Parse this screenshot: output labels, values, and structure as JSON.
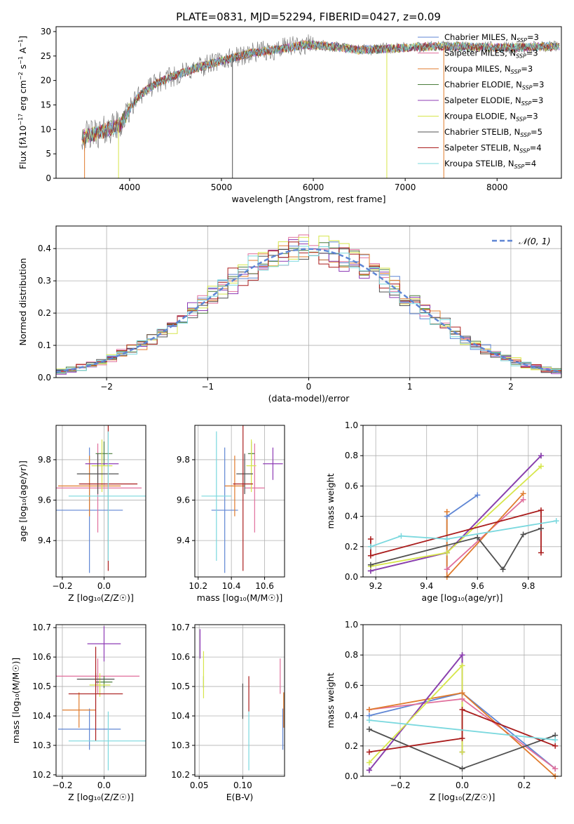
{
  "figure": {
    "title": "PLATE=0831, MJD=52294, FIBERID=0427, z=0.09"
  },
  "colors": {
    "Chabrier MILES": "#5f86d4",
    "Salpeter MILES": "#e06f9c",
    "Kroupa MILES": "#e07b2c",
    "Chabrier ELODIE": "#4a7d3c",
    "Salpeter ELODIE": "#8e3bb5",
    "Kroupa ELODIE": "#d6e64a",
    "Chabrier STELIB": "#505050",
    "Salpeter STELIB": "#aa1c1c",
    "Kroupa STELIB": "#7ad8de"
  },
  "chart_data": [
    {
      "id": "spectrum",
      "type": "line",
      "title": "PLATE=0831, MJD=52294, FIBERID=0427, z=0.09",
      "xlabel": "wavelength [Angstrom, rest frame]",
      "ylabel_html": "Flux [f<tspan font-style='italic'>λ</tspan>10<tspan dy='-5' font-size='8'>−17</tspan><tspan dy='5'> erg cm</tspan><tspan dy='-5' font-size='8'>−2</tspan><tspan dy='5'> s</tspan><tspan dy='-5' font-size='8'>−1</tspan><tspan dy='5'> A</tspan><tspan dy='-5' font-size='8'>−1</tspan><tspan dy='5'>]</tspan>",
      "xlim": [
        3200,
        8700
      ],
      "ylim": [
        0,
        31
      ],
      "xticks": [
        4000,
        5000,
        6000,
        7000,
        8000
      ],
      "yticks": [
        0,
        5,
        10,
        15,
        20,
        25,
        30
      ],
      "legend_placement": "right",
      "legend": [
        {
          "model": "Chabrier MILES",
          "label": "Chabrier MILES, N",
          "sub": "SSP",
          "n": "=3"
        },
        {
          "model": "Salpeter MILES",
          "label": "Salpeter MILES, N",
          "sub": "SSP",
          "n": "=3"
        },
        {
          "model": "Kroupa MILES",
          "label": "Kroupa MILES, N",
          "sub": "SSP",
          "n": "=3"
        },
        {
          "model": "Chabrier ELODIE",
          "label": "Chabrier ELODIE, N",
          "sub": "SSP",
          "n": "=3"
        },
        {
          "model": "Salpeter ELODIE",
          "label": "Salpeter ELODIE, N",
          "sub": "SSP",
          "n": "=3"
        },
        {
          "model": "Kroupa ELODIE",
          "label": "Kroupa ELODIE, N",
          "sub": "SSP",
          "n": "=3"
        },
        {
          "model": "Chabrier STELIB",
          "label": "Chabrier STELIB, N",
          "sub": "SSP",
          "n": "=5"
        },
        {
          "model": "Salpeter STELIB",
          "label": "Salpeter STELIB, N",
          "sub": "SSP",
          "n": "=4"
        },
        {
          "model": "Kroupa STELIB",
          "label": "Kroupa STELIB, N",
          "sub": "SSP",
          "n": "=4"
        }
      ],
      "continuum": {
        "x": [
          3500,
          3700,
          3900,
          4000,
          4100,
          4300,
          4500,
          4800,
          5000,
          5300,
          5600,
          5900,
          6200,
          6500,
          6800,
          7100,
          7400,
          7800,
          8200,
          8600
        ],
        "y": [
          8.5,
          9.5,
          11.0,
          14.0,
          17.0,
          19.5,
          21.0,
          23.0,
          24.0,
          25.5,
          26.3,
          27.3,
          27.0,
          26.2,
          26.5,
          26.8,
          27.0,
          26.8,
          26.7,
          27.0
        ]
      },
      "spikes": [
        {
          "x": 3510,
          "y": 0,
          "model": "Kroupa MILES"
        },
        {
          "x": 3880,
          "y": 0,
          "model": "Kroupa ELODIE"
        },
        {
          "x": 5120,
          "y": 0,
          "model": "Chabrier STELIB"
        },
        {
          "x": 6800,
          "y": 0,
          "model": "Kroupa ELODIE"
        },
        {
          "x": 7420,
          "y": 0,
          "model": "Kroupa MILES"
        }
      ]
    },
    {
      "id": "residuals",
      "type": "histogram",
      "xlabel": "(data-model)/error",
      "ylabel": "Normed distribution",
      "xlim": [
        -2.5,
        2.5
      ],
      "ylim": [
        0,
        0.47
      ],
      "xticks": [
        -2,
        -1,
        0,
        1,
        2
      ],
      "yticks": [
        0.0,
        0.1,
        0.2,
        0.3,
        0.4
      ],
      "legend_placement": "top-right",
      "legend_label": "𝒩(0, 1)",
      "legend_color": "#5f86d4",
      "bin_width": 0.1,
      "gaussian": {
        "mu": 0,
        "sigma": 1
      }
    },
    {
      "id": "age-vs-Z",
      "type": "errorbar",
      "xlabel": "Z [log₁₀(Z/Z☉)]",
      "ylabel": "age  [log₁₀(age/yr)]",
      "xlim": [
        -0.23,
        0.2
      ],
      "ylim": [
        9.22,
        9.97
      ],
      "xticks": [
        -0.2,
        0.0
      ],
      "yticks": [
        9.4,
        9.6,
        9.8
      ],
      "points": [
        {
          "model": "Chabrier MILES",
          "x": -0.07,
          "xerr": 0.16,
          "y": 9.55,
          "yerr": 0.31
        },
        {
          "model": "Salpeter MILES",
          "x": -0.03,
          "xerr": 0.21,
          "y": 9.66,
          "yerr": 0.22
        },
        {
          "model": "Kroupa MILES",
          "x": -0.07,
          "xerr": 0.15,
          "y": 9.67,
          "yerr": 0.15
        },
        {
          "model": "Chabrier ELODIE",
          "x": 0.0,
          "xerr": 0.04,
          "y": 9.83,
          "yerr": 0.06
        },
        {
          "model": "Salpeter ELODIE",
          "x": -0.01,
          "xerr": 0.08,
          "y": 9.78,
          "yerr": 0.06
        },
        {
          "model": "Kroupa ELODIE",
          "x": -0.01,
          "xerr": 0.05,
          "y": 9.77,
          "yerr": 0.13
        },
        {
          "model": "Chabrier STELIB",
          "x": -0.03,
          "xerr": 0.1,
          "y": 9.73,
          "yerr": 0.1
        },
        {
          "model": "Salpeter STELIB",
          "x": 0.02,
          "xerr": 0.14,
          "y": 9.68,
          "yerr": 0.43
        },
        {
          "model": "Kroupa STELIB",
          "x": 0.02,
          "xerr": 0.19,
          "y": 9.62,
          "yerr": 0.32
        }
      ]
    },
    {
      "id": "age-vs-mass",
      "type": "errorbar",
      "xlabel": "mass [log₁₀(M/M☉)]",
      "ylabel": "",
      "xlim": [
        10.18,
        10.72
      ],
      "ylim": [
        9.22,
        9.97
      ],
      "xticks": [
        10.2,
        10.4,
        10.6
      ],
      "yticks": [
        9.4,
        9.6,
        9.8
      ],
      "points": [
        {
          "model": "Chabrier MILES",
          "x": 10.36,
          "xerr": 0.08,
          "y": 9.55,
          "yerr": 0.31
        },
        {
          "model": "Salpeter MILES",
          "x": 10.54,
          "xerr": 0.06,
          "y": 9.66,
          "yerr": 0.22
        },
        {
          "model": "Kroupa MILES",
          "x": 10.42,
          "xerr": 0.06,
          "y": 9.67,
          "yerr": 0.15
        },
        {
          "model": "Chabrier ELODIE",
          "x": 10.52,
          "xerr": 0.02,
          "y": 9.83,
          "yerr": 0.06
        },
        {
          "model": "Salpeter ELODIE",
          "x": 10.65,
          "xerr": 0.06,
          "y": 9.78,
          "yerr": 0.08
        },
        {
          "model": "Kroupa ELODIE",
          "x": 10.52,
          "xerr": 0.03,
          "y": 9.77,
          "yerr": 0.13
        },
        {
          "model": "Chabrier STELIB",
          "x": 10.48,
          "xerr": 0.05,
          "y": 9.73,
          "yerr": 0.1
        },
        {
          "model": "Salpeter STELIB",
          "x": 10.47,
          "xerr": 0.06,
          "y": 9.68,
          "yerr": 0.43
        },
        {
          "model": "Kroupa STELIB",
          "x": 10.31,
          "xerr": 0.09,
          "y": 9.62,
          "yerr": 0.32
        }
      ]
    },
    {
      "id": "weight-vs-age",
      "type": "line",
      "xlabel": "age  [log₁₀(age/yr)]",
      "ylabel": "mass weight",
      "xlim": [
        9.15,
        9.93
      ],
      "ylim": [
        0,
        1
      ],
      "xticks": [
        9.2,
        9.4,
        9.6,
        9.8
      ],
      "yticks": [
        0.0,
        0.2,
        0.4,
        0.6,
        0.8,
        1.0
      ],
      "series": [
        {
          "model": "Chabrier MILES",
          "x": [
            9.48,
            9.48,
            9.6
          ],
          "y": [
            0.05,
            0.4,
            0.54
          ]
        },
        {
          "model": "Salpeter MILES",
          "x": [
            9.48,
            9.78
          ],
          "y": [
            0.05,
            0.51
          ]
        },
        {
          "model": "Kroupa MILES",
          "x": [
            9.48,
            9.48,
            9.78
          ],
          "y": [
            0.43,
            0.0,
            0.55
          ]
        },
        {
          "model": "Chabrier ELODIE",
          "x": [
            9.18,
            9.48,
            9.85
          ],
          "y": [
            0.04,
            0.16,
            0.8
          ]
        },
        {
          "model": "Salpeter ELODIE",
          "x": [
            9.18,
            9.48,
            9.85
          ],
          "y": [
            0.04,
            0.16,
            0.8
          ]
        },
        {
          "model": "Kroupa ELODIE",
          "x": [
            9.18,
            9.48,
            9.85
          ],
          "y": [
            0.07,
            0.16,
            0.73
          ]
        },
        {
          "model": "Chabrier STELIB",
          "x": [
            9.18,
            9.6,
            9.7,
            9.78,
            9.85
          ],
          "y": [
            0.08,
            0.26,
            0.05,
            0.28,
            0.32
          ]
        },
        {
          "model": "Salpeter STELIB",
          "x": [
            9.18,
            9.18,
            9.85,
            9.85
          ],
          "y": [
            0.25,
            0.14,
            0.44,
            0.16
          ]
        },
        {
          "model": "Kroupa STELIB",
          "x": [
            9.18,
            9.3,
            9.48,
            9.91
          ],
          "y": [
            0.2,
            0.27,
            0.25,
            0.37
          ]
        }
      ]
    },
    {
      "id": "mass-vs-Z",
      "type": "errorbar",
      "xlabel": "Z [log₁₀(Z/Z☉)]",
      "ylabel": "mass [log₁₀(M/M☉)]",
      "xlim": [
        -0.23,
        0.2
      ],
      "ylim": [
        10.195,
        10.71
      ],
      "xticks": [
        -0.2,
        0.0
      ],
      "yticks": [
        10.2,
        10.3,
        10.4,
        10.5,
        10.6,
        10.7
      ],
      "points": [
        {
          "model": "Chabrier MILES",
          "x": -0.07,
          "xerr": 0.15,
          "y": 10.355,
          "yerr": 0.07
        },
        {
          "model": "Salpeter MILES",
          "x": -0.03,
          "xerr": 0.2,
          "y": 10.535,
          "yerr": 0.06
        },
        {
          "model": "Kroupa MILES",
          "x": -0.12,
          "xerr": 0.08,
          "y": 10.42,
          "yerr": 0.06
        },
        {
          "model": "Chabrier ELODIE",
          "x": 0.0,
          "xerr": 0.04,
          "y": 10.515,
          "yerr": 0.02
        },
        {
          "model": "Salpeter ELODIE",
          "x": 0.0,
          "xerr": 0.08,
          "y": 10.645,
          "yerr": 0.06
        },
        {
          "model": "Kroupa ELODIE",
          "x": -0.02,
          "xerr": 0.05,
          "y": 10.505,
          "yerr": 0.04
        },
        {
          "model": "Chabrier STELIB",
          "x": -0.04,
          "xerr": 0.09,
          "y": 10.525,
          "yerr": 0.02
        },
        {
          "model": "Salpeter STELIB",
          "x": -0.04,
          "xerr": 0.13,
          "y": 10.475,
          "yerr": 0.16
        },
        {
          "model": "Kroupa STELIB",
          "x": 0.02,
          "xerr": 0.19,
          "y": 10.315,
          "yerr": 0.1
        }
      ]
    },
    {
      "id": "mass-vs-ebv",
      "type": "errorbar",
      "xlabel": "E(B-V)",
      "ylabel": "",
      "xlim": [
        0.045,
        0.148
      ],
      "ylim": [
        10.195,
        10.71
      ],
      "xticks": [
        0.05,
        0.1
      ],
      "yticks": [
        10.2,
        10.3,
        10.4,
        10.5,
        10.6,
        10.7
      ],
      "points": [
        {
          "model": "Chabrier MILES",
          "x": 0.146,
          "xerr": 0,
          "y": 10.355,
          "yerr": 0.07
        },
        {
          "model": "Salpeter MILES",
          "x": 0.143,
          "xerr": 0,
          "y": 10.535,
          "yerr": 0.06
        },
        {
          "model": "Kroupa MILES",
          "x": 0.147,
          "xerr": 0,
          "y": 10.42,
          "yerr": 0.06
        },
        {
          "model": "Chabrier ELODIE",
          "x": 0.055,
          "xerr": 0,
          "y": 10.515,
          "yerr": 0.02
        },
        {
          "model": "Salpeter ELODIE",
          "x": 0.051,
          "xerr": 0,
          "y": 10.645,
          "yerr": 0.05
        },
        {
          "model": "Kroupa ELODIE",
          "x": 0.055,
          "xerr": 0,
          "y": 10.54,
          "yerr": 0.08
        },
        {
          "model": "Chabrier STELIB",
          "x": 0.1,
          "xerr": 0,
          "y": 10.45,
          "yerr": 0.06
        },
        {
          "model": "Salpeter STELIB",
          "x": 0.107,
          "xerr": 0,
          "y": 10.475,
          "yerr": 0.06
        },
        {
          "model": "Kroupa STELIB",
          "x": 0.107,
          "xerr": 0,
          "y": 10.315,
          "yerr": 0.1
        }
      ]
    },
    {
      "id": "weight-vs-Z",
      "type": "line",
      "xlabel": "Z [log₁₀(Z/Z☉)]",
      "ylabel": "mass weight",
      "xlim": [
        -0.32,
        0.32
      ],
      "ylim": [
        0,
        1
      ],
      "xticks": [
        -0.2,
        0.0,
        0.2
      ],
      "yticks": [
        0.0,
        0.2,
        0.4,
        0.6,
        0.8,
        1.0
      ],
      "series": [
        {
          "model": "Chabrier MILES",
          "x": [
            -0.3,
            0.0,
            0.3
          ],
          "y": [
            0.4,
            0.55,
            0.05
          ]
        },
        {
          "model": "Salpeter MILES",
          "x": [
            -0.3,
            0.0,
            0.3
          ],
          "y": [
            0.44,
            0.51,
            0.05
          ]
        },
        {
          "model": "Kroupa MILES",
          "x": [
            -0.3,
            0.0,
            0.3
          ],
          "y": [
            0.44,
            0.55,
            0.0
          ]
        },
        {
          "model": "Chabrier ELODIE",
          "x": [
            -0.3,
            0.0,
            0.0
          ],
          "y": [
            0.04,
            0.8,
            0.16
          ]
        },
        {
          "model": "Salpeter ELODIE",
          "x": [
            -0.3,
            0.0,
            0.0
          ],
          "y": [
            0.04,
            0.8,
            0.16
          ]
        },
        {
          "model": "Kroupa ELODIE",
          "x": [
            -0.3,
            0.0,
            0.0
          ],
          "y": [
            0.09,
            0.73,
            0.16
          ]
        },
        {
          "model": "Chabrier STELIB",
          "x": [
            -0.3,
            0.0,
            0.3
          ],
          "y": [
            0.31,
            0.05,
            0.27
          ]
        },
        {
          "model": "Salpeter STELIB",
          "x": [
            -0.3,
            0.0,
            0.0,
            0.3
          ],
          "y": [
            0.16,
            0.25,
            0.44,
            0.2
          ]
        },
        {
          "model": "Kroupa STELIB",
          "x": [
            -0.3,
            0.3
          ],
          "y": [
            0.37,
            0.24
          ]
        }
      ]
    }
  ]
}
